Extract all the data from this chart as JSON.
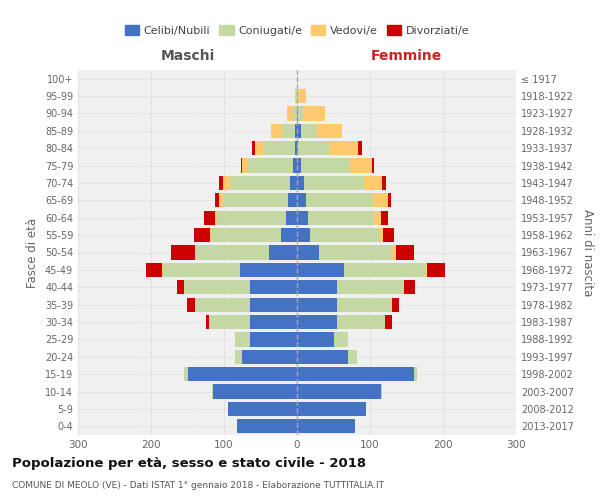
{
  "age_groups": [
    "100+",
    "95-99",
    "90-94",
    "85-89",
    "80-84",
    "75-79",
    "70-74",
    "65-69",
    "60-64",
    "55-59",
    "50-54",
    "45-49",
    "40-44",
    "35-39",
    "30-34",
    "25-29",
    "20-24",
    "15-19",
    "10-14",
    "5-9",
    "0-4"
  ],
  "birth_years": [
    "≤ 1917",
    "1918-1922",
    "1923-1927",
    "1928-1932",
    "1933-1937",
    "1938-1942",
    "1943-1947",
    "1948-1952",
    "1953-1957",
    "1958-1962",
    "1963-1967",
    "1968-1972",
    "1973-1977",
    "1978-1982",
    "1983-1987",
    "1988-1992",
    "1993-1997",
    "1998-2002",
    "2003-2007",
    "2008-2012",
    "2013-2017"
  ],
  "maschi": {
    "celibi": [
      0,
      0,
      0,
      3,
      3,
      5,
      10,
      12,
      15,
      22,
      38,
      78,
      65,
      65,
      65,
      65,
      75,
      150,
      115,
      95,
      82
    ],
    "coniugati": [
      0,
      1,
      6,
      18,
      42,
      62,
      82,
      90,
      95,
      95,
      100,
      105,
      90,
      75,
      55,
      20,
      10,
      5,
      2,
      0,
      0
    ],
    "vedovi": [
      0,
      2,
      8,
      15,
      12,
      8,
      10,
      5,
      2,
      2,
      2,
      2,
      0,
      0,
      0,
      0,
      0,
      0,
      0,
      0,
      0
    ],
    "divorziati": [
      0,
      0,
      0,
      0,
      5,
      2,
      5,
      5,
      15,
      22,
      32,
      22,
      10,
      10,
      5,
      0,
      0,
      0,
      0,
      0,
      0
    ]
  },
  "femmine": {
    "nubili": [
      0,
      0,
      2,
      5,
      2,
      5,
      10,
      12,
      15,
      18,
      30,
      65,
      55,
      55,
      55,
      50,
      70,
      160,
      115,
      95,
      80
    ],
    "coniugate": [
      0,
      2,
      6,
      22,
      42,
      68,
      82,
      92,
      90,
      95,
      100,
      110,
      92,
      75,
      65,
      20,
      12,
      5,
      2,
      0,
      0
    ],
    "vedove": [
      0,
      10,
      30,
      35,
      40,
      30,
      25,
      20,
      10,
      5,
      5,
      3,
      0,
      0,
      0,
      0,
      0,
      0,
      0,
      0,
      0
    ],
    "divorziate": [
      0,
      0,
      0,
      0,
      5,
      2,
      5,
      5,
      10,
      15,
      25,
      25,
      15,
      10,
      10,
      0,
      0,
      0,
      0,
      0,
      0
    ]
  },
  "colors": {
    "celibi_nubili": "#4472c4",
    "coniugati": "#c5d8a4",
    "vedovi": "#ffc96e",
    "divorziati": "#cc0000"
  },
  "xlim": 300,
  "title": "Popolazione per età, sesso e stato civile - 2018",
  "subtitle": "COMUNE DI MEOLO (VE) - Dati ISTAT 1° gennaio 2018 - Elaborazione TUTTITALIA.IT",
  "ylabel_left": "Fasce di età",
  "ylabel_right": "Anni di nascita",
  "xlabel_left": "Maschi",
  "xlabel_right": "Femmine",
  "bg_color": "#f0f0f0",
  "grid_color": "#d5d5d5"
}
